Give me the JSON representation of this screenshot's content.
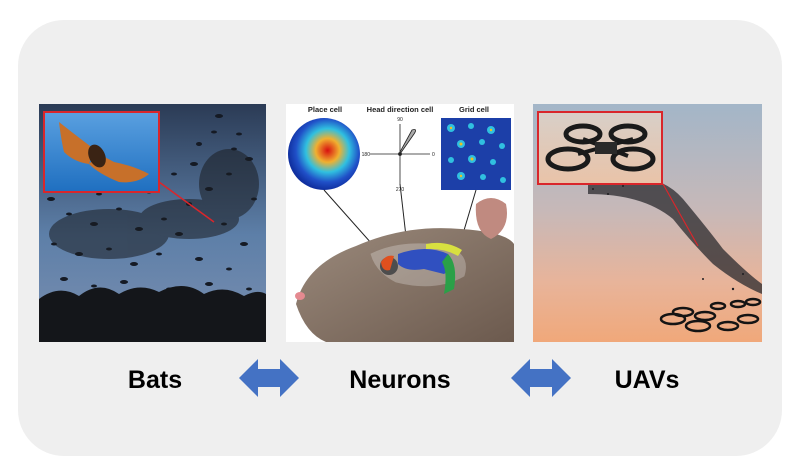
{
  "panels": {
    "bats": {
      "caption": "Bats"
    },
    "neurons": {
      "caption": "Neurons",
      "labels": {
        "place_cell": "Place cell",
        "head_direction_cell": "Head direction cell",
        "grid_cell": "Grid cell",
        "compass_north": "90",
        "compass_west": "180",
        "compass_east": "0",
        "compass_south": "270"
      }
    },
    "uavs": {
      "caption": "UAVs"
    }
  },
  "arrows": [
    "bidirectional-arrow",
    "bidirectional-arrow"
  ],
  "colors": {
    "arrow": "#4472c4",
    "inset_border": "#d9262b",
    "card_background": "#efefef"
  }
}
